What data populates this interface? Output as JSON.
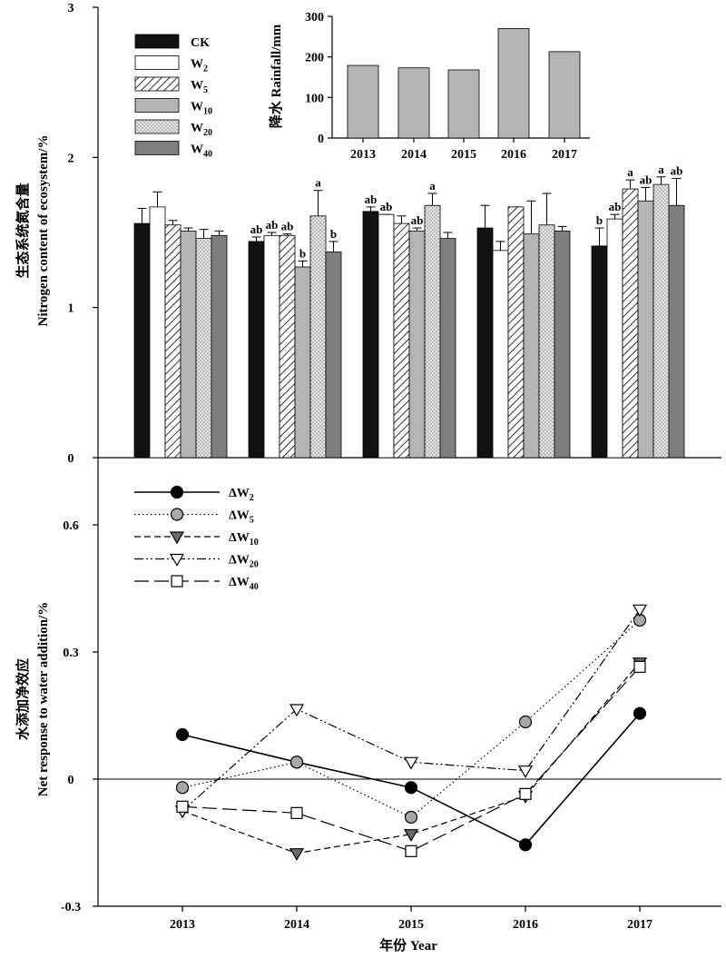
{
  "chart_data": [
    {
      "type": "bar",
      "ylabel_cn": "生态系统氮含量",
      "ylabel_en": "Nitrogen content of ecosystem/%",
      "ylim": [
        0,
        3
      ],
      "yticks": [
        "0",
        "1",
        "2",
        "3"
      ],
      "categories": [
        "2013",
        "2014",
        "2015",
        "2016",
        "2017"
      ],
      "legend_position": "top-left",
      "series": [
        {
          "name": "CK",
          "sub": "",
          "pattern": "black",
          "values": [
            1.56,
            1.44,
            1.64,
            1.53,
            1.41
          ],
          "errors": [
            0.1,
            0.03,
            0.03,
            0.15,
            0.12
          ],
          "letters": [
            "",
            "ab",
            "ab",
            "",
            "b"
          ]
        },
        {
          "name": "W",
          "sub": "2",
          "pattern": "white",
          "values": [
            1.67,
            1.48,
            1.62,
            1.38,
            1.59
          ],
          "errors": [
            0.1,
            0.02,
            0.0,
            0.06,
            0.03
          ],
          "letters": [
            "",
            "ab",
            "ab",
            "",
            "ab"
          ]
        },
        {
          "name": "W",
          "sub": "5",
          "pattern": "hatch",
          "values": [
            1.55,
            1.48,
            1.56,
            1.67,
            1.79
          ],
          "errors": [
            0.03,
            0.01,
            0.05,
            0.0,
            0.06
          ],
          "letters": [
            "",
            "ab",
            "",
            "",
            "a"
          ]
        },
        {
          "name": "W",
          "sub": "10",
          "pattern": "lightgray",
          "values": [
            1.51,
            1.27,
            1.51,
            1.49,
            1.71
          ],
          "errors": [
            0.02,
            0.04,
            0.02,
            0.22,
            0.09
          ],
          "letters": [
            "",
            "b",
            "ab",
            "",
            "ab"
          ]
        },
        {
          "name": "W",
          "sub": "20",
          "pattern": "dots",
          "values": [
            1.46,
            1.61,
            1.68,
            1.55,
            1.82
          ],
          "errors": [
            0.06,
            0.17,
            0.08,
            0.21,
            0.05
          ],
          "letters": [
            "",
            "a",
            "a",
            "",
            "a"
          ]
        },
        {
          "name": "W",
          "sub": "40",
          "pattern": "darkgray",
          "values": [
            1.48,
            1.37,
            1.46,
            1.51,
            1.68
          ],
          "errors": [
            0.03,
            0.07,
            0.04,
            0.03,
            0.18
          ],
          "letters": [
            "",
            "b",
            "",
            "",
            "ab"
          ]
        }
      ]
    },
    {
      "type": "bar",
      "inset": true,
      "ylabel": "降水 Rainfall/mm",
      "ylim": [
        0,
        300
      ],
      "yticks": [
        "0",
        "100",
        "200",
        "300"
      ],
      "categories": [
        "2013",
        "2014",
        "2015",
        "2016",
        "2017"
      ],
      "values": [
        179,
        173,
        168,
        270,
        213
      ]
    },
    {
      "type": "line",
      "ylabel_cn": "水添加净效应",
      "ylabel_en": "Net response to water addition/%",
      "xlabel": "年份 Year",
      "ylim": [
        -0.3,
        0.6
      ],
      "yticks": [
        "-0.3",
        "0",
        "0.3",
        "0.6"
      ],
      "categories": [
        "2013",
        "2014",
        "2015",
        "2016",
        "2017"
      ],
      "legend_position": "top-left",
      "series": [
        {
          "name": "ΔW",
          "sub": "2",
          "style": "solid",
          "marker": "circle",
          "fill": "#000000",
          "values": [
            0.105,
            0.04,
            -0.02,
            -0.155,
            0.155
          ]
        },
        {
          "name": "ΔW",
          "sub": "5",
          "style": "dotted",
          "marker": "circle",
          "fill": "#a8a8a8",
          "values": [
            -0.02,
            0.04,
            -0.09,
            0.135,
            0.375
          ]
        },
        {
          "name": "ΔW",
          "sub": "10",
          "style": "dashed",
          "marker": "triangle-down",
          "fill": "#6a6a6a",
          "values": [
            -0.075,
            -0.175,
            -0.13,
            -0.04,
            0.275
          ]
        },
        {
          "name": "ΔW",
          "sub": "20",
          "style": "dashdotdot",
          "marker": "triangle-down",
          "fill": "#ffffff",
          "values": [
            -0.075,
            0.165,
            0.04,
            0.02,
            0.4
          ]
        },
        {
          "name": "ΔW",
          "sub": "40",
          "style": "longdash",
          "marker": "square",
          "fill": "#ffffff",
          "values": [
            -0.065,
            -0.08,
            -0.17,
            -0.035,
            0.265
          ]
        }
      ]
    }
  ]
}
